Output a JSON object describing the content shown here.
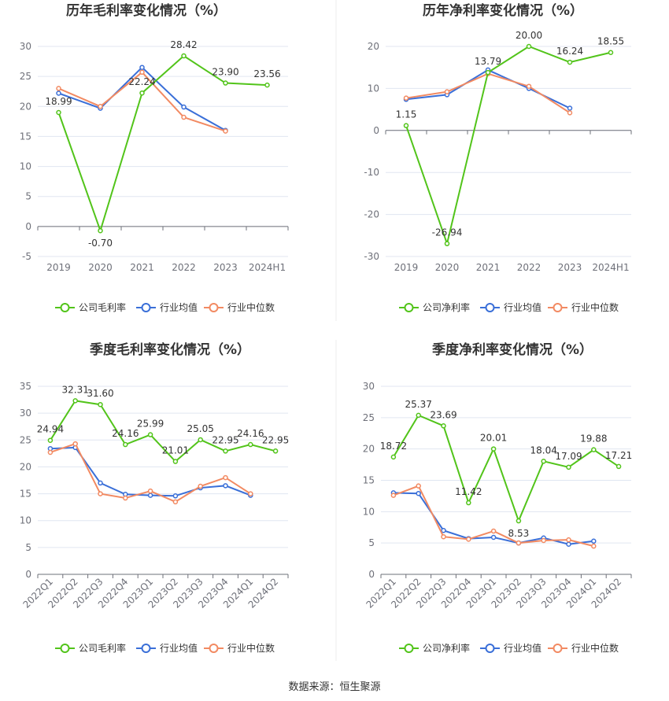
{
  "source_text": "数据来源：恒生聚源",
  "colors": {
    "company": "#52c41a",
    "industry_avg": "#3a6fd8",
    "industry_median": "#f28a62"
  },
  "chart_data": [
    {
      "type": "line",
      "title": "历年毛利率变化情况（%）",
      "categories": [
        "2019",
        "2020",
        "2021",
        "2022",
        "2023",
        "2024H1"
      ],
      "ylim": [
        -5,
        30
      ],
      "yticks": [
        -5,
        0,
        5,
        10,
        15,
        20,
        25,
        30
      ],
      "grid": true,
      "legend": "bottom",
      "series": [
        {
          "name": "公司毛利率",
          "values": [
            18.99,
            -0.7,
            22.24,
            28.42,
            23.9,
            23.56
          ],
          "labels": [
            "18.99",
            "-0.70",
            "22.24",
            "28.42",
            "23.90",
            "23.56"
          ]
        },
        {
          "name": "行业均值",
          "values": [
            22.2,
            19.7,
            26.5,
            19.9,
            16.0,
            null
          ]
        },
        {
          "name": "行业中位数",
          "values": [
            23.0,
            20.0,
            25.7,
            18.2,
            15.9,
            null
          ]
        }
      ]
    },
    {
      "type": "line",
      "title": "历年净利率变化情况（%）",
      "categories": [
        "2019",
        "2020",
        "2021",
        "2022",
        "2023",
        "2024H1"
      ],
      "ylim": [
        -30,
        20
      ],
      "yticks": [
        -30,
        -20,
        -10,
        0,
        10,
        20
      ],
      "grid": true,
      "legend": "bottom",
      "series": [
        {
          "name": "公司净利率",
          "values": [
            1.15,
            -26.94,
            13.79,
            20.0,
            16.24,
            18.55
          ],
          "labels": [
            "1.15",
            "-26.94",
            "13.79",
            "20.00",
            "16.24",
            "18.55"
          ]
        },
        {
          "name": "行业均值",
          "values": [
            7.4,
            8.5,
            14.4,
            10.0,
            5.3,
            null
          ]
        },
        {
          "name": "行业中位数",
          "values": [
            7.7,
            9.2,
            13.5,
            10.5,
            4.2,
            null
          ]
        }
      ]
    },
    {
      "type": "line",
      "title": "季度毛利率变化情况（%）",
      "categories": [
        "2022Q1",
        "2022Q2",
        "2022Q3",
        "2022Q4",
        "2023Q1",
        "2023Q2",
        "2023Q3",
        "2023Q4",
        "2024Q1",
        "2024Q2"
      ],
      "ylim": [
        0,
        35
      ],
      "yticks": [
        0,
        5,
        10,
        15,
        20,
        25,
        30,
        35
      ],
      "grid": true,
      "legend": "bottom",
      "series": [
        {
          "name": "公司毛利率",
          "values": [
            24.94,
            32.31,
            31.6,
            24.16,
            25.99,
            21.01,
            25.05,
            22.95,
            24.16,
            22.95
          ],
          "labels": [
            "24.94",
            "32.31",
            "31.60",
            "24.16",
            "25.99",
            "21.01",
            "25.05",
            "22.95",
            "24.16",
            "22.95"
          ]
        },
        {
          "name": "行业均值",
          "values": [
            23.4,
            23.6,
            17.0,
            14.9,
            14.7,
            14.6,
            16.1,
            16.5,
            14.7,
            null
          ]
        },
        {
          "name": "行业中位数",
          "values": [
            22.7,
            24.3,
            15.0,
            14.2,
            15.5,
            13.5,
            16.4,
            18.0,
            15.0,
            null
          ]
        }
      ]
    },
    {
      "type": "line",
      "title": "季度净利率变化情况（%）",
      "categories": [
        "2022Q1",
        "2022Q2",
        "2022Q3",
        "2022Q4",
        "2023Q1",
        "2023Q2",
        "2023Q3",
        "2023Q4",
        "2024Q1",
        "2024Q2"
      ],
      "ylim": [
        0,
        30
      ],
      "yticks": [
        0,
        5,
        10,
        15,
        20,
        25,
        30
      ],
      "grid": true,
      "legend": "bottom",
      "series": [
        {
          "name": "公司净利率",
          "values": [
            18.72,
            25.37,
            23.69,
            11.42,
            20.01,
            8.53,
            18.04,
            17.09,
            19.88,
            17.21
          ],
          "labels": [
            "18.72",
            "25.37",
            "23.69",
            "11.42",
            "20.01",
            "8.53",
            "18.04",
            "17.09",
            "19.88",
            "17.21"
          ]
        },
        {
          "name": "行业均值",
          "values": [
            13.0,
            12.9,
            7.0,
            5.7,
            5.9,
            5.0,
            5.8,
            4.8,
            5.3,
            null
          ]
        },
        {
          "name": "行业中位数",
          "values": [
            12.6,
            14.1,
            6.0,
            5.6,
            6.9,
            5.0,
            5.4,
            5.5,
            4.5,
            null
          ]
        }
      ]
    }
  ]
}
